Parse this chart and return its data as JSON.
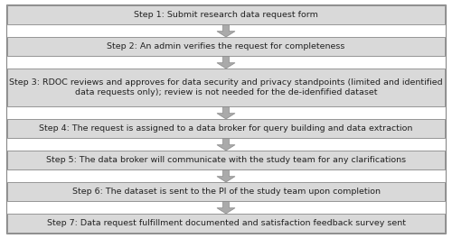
{
  "steps": [
    "Step 1: Submit research data request form",
    "Step 2: An admin verifies the request for completeness",
    "Step 3: RDOC reviews and approves for data security and privacy standpoints (limited and identified\ndata requests only); review is not needed for the de-idenfified dataset",
    "Step 4: The request is assigned to a data broker for query building and data extraction",
    "Step 5: The data broker will communicate with the study team for any clarifications",
    "Step 6: The dataset is sent to the PI of the study team upon completion",
    "Step 7: Data request fulfillment documented and satisfaction feedback survey sent"
  ],
  "box_heights": [
    1,
    1,
    2,
    1,
    1,
    1,
    1
  ],
  "box_color": "#d9d9d9",
  "box_edge_color": "#888888",
  "arrow_color": "#aaaaaa",
  "arrow_edge_color": "#888888",
  "text_color": "#222222",
  "background_color": "#ffffff",
  "font_size": 6.8,
  "outer_border_color": "#888888"
}
